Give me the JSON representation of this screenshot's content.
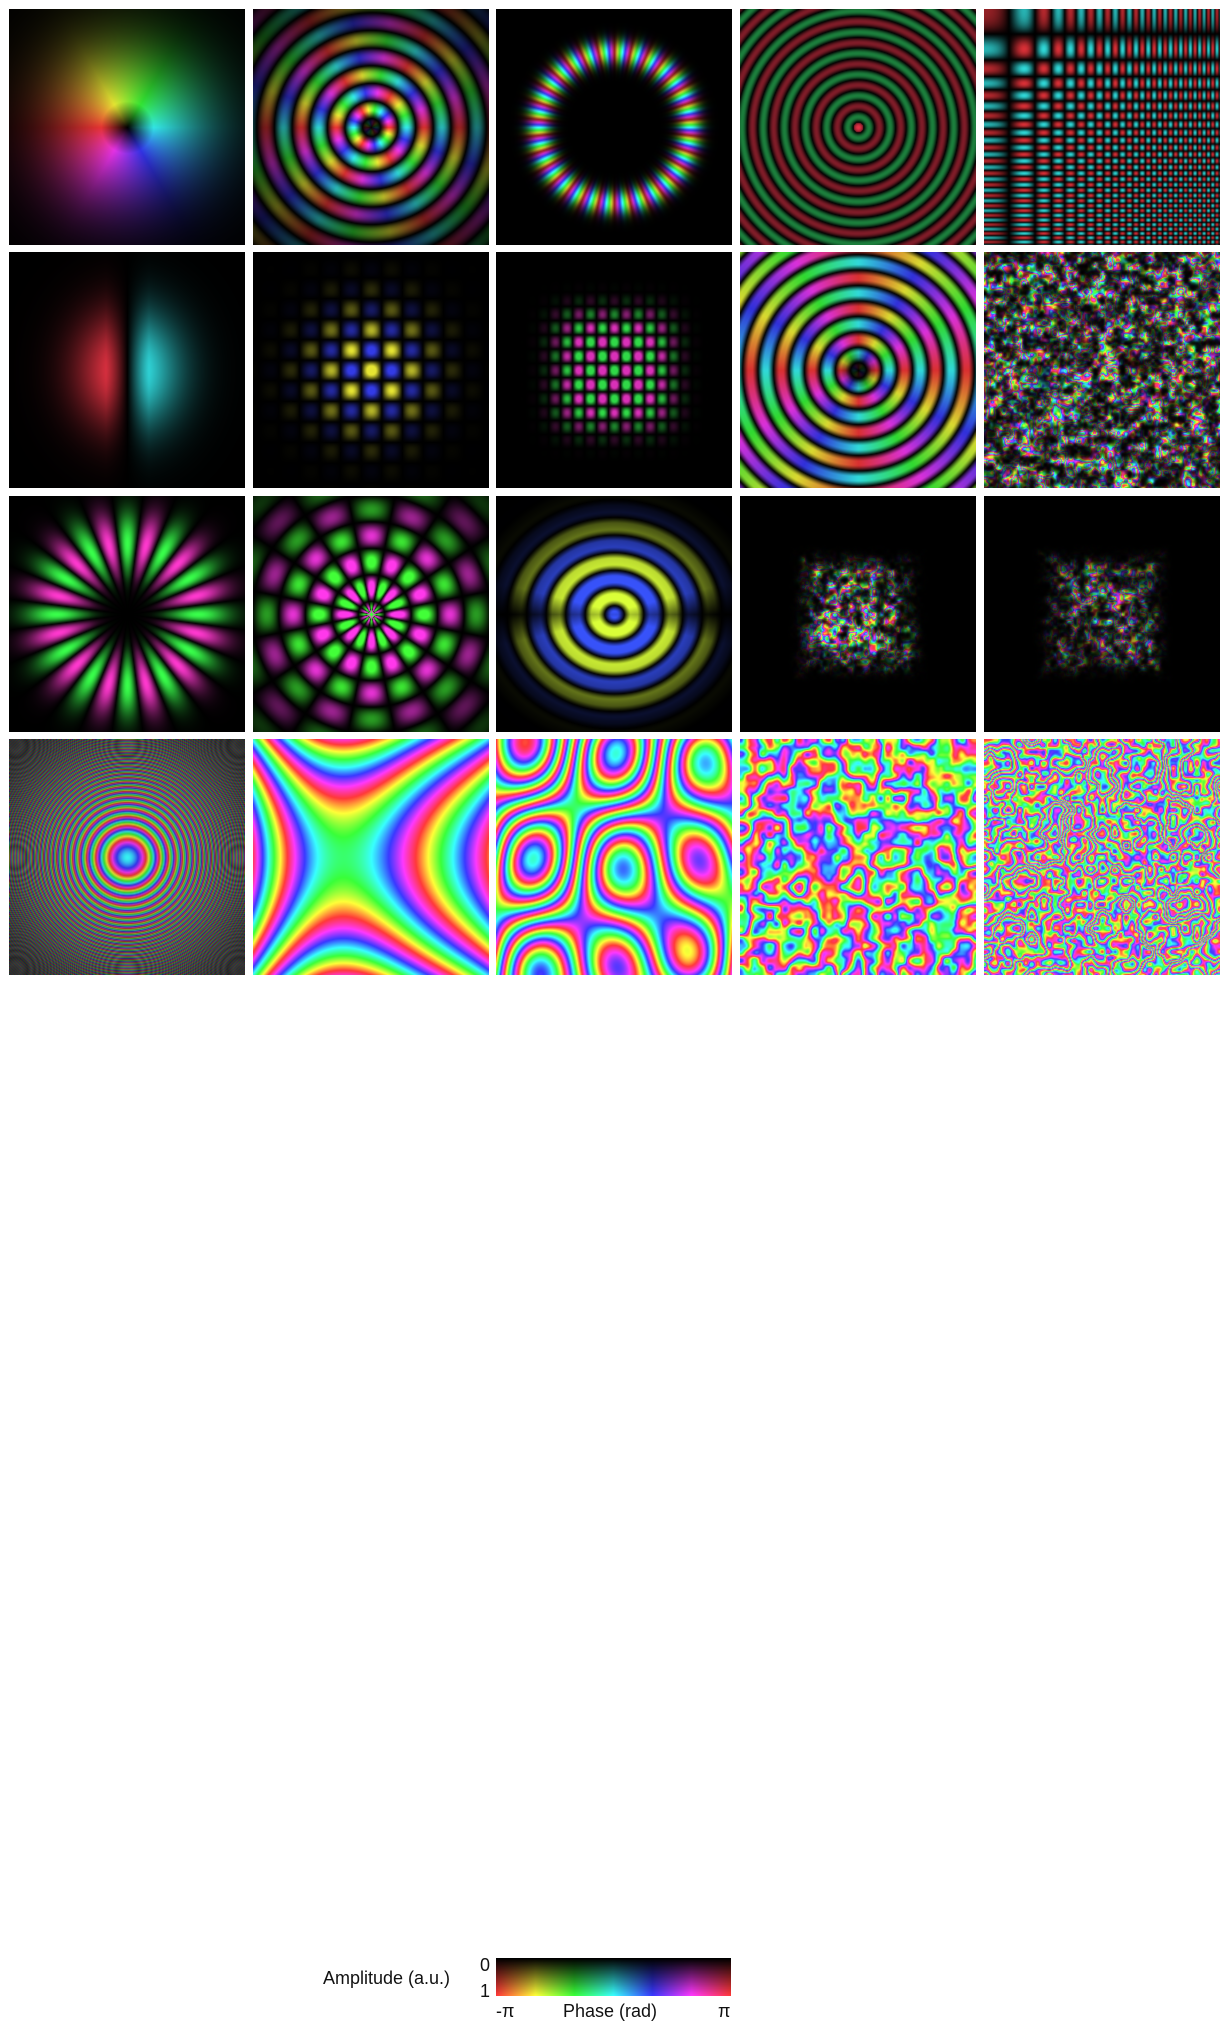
{
  "panels": [
    {
      "pattern": "vortex-gaussian"
    },
    {
      "pattern": "vortex-rings"
    },
    {
      "pattern": "ring-of-spots"
    },
    {
      "pattern": "concentric-rings-red-green"
    },
    {
      "pattern": "rectangular-grid-red-cyan"
    },
    {
      "pattern": "two-lobes-red-cyan"
    },
    {
      "pattern": "grid-orange-blue"
    },
    {
      "pattern": "grid-green-magenta"
    },
    {
      "pattern": "bessel-vortex-rings"
    },
    {
      "pattern": "speckle-full"
    },
    {
      "pattern": "petals-yellow-blue"
    },
    {
      "pattern": "petals-rings-green-magenta"
    },
    {
      "pattern": "arc-rings-orange-blue"
    },
    {
      "pattern": "speckle-sparse"
    },
    {
      "pattern": "speckle-sparse-2"
    },
    {
      "pattern": "fresnel-rings"
    },
    {
      "pattern": "phase-saddle"
    },
    {
      "pattern": "phase-multi-lobe"
    },
    {
      "pattern": "phase-turbulent-coarse"
    },
    {
      "pattern": "phase-turbulent-fine"
    }
  ],
  "legend": {
    "amplitude_label": "Amplitude (a.u.)",
    "amplitude_top": "0",
    "amplitude_bottom": "1",
    "phase_min": "-π",
    "phase_label": "Phase (rad)",
    "phase_max": "π"
  },
  "colors": {
    "background": "#ffffff",
    "panel_background": "#000000"
  }
}
